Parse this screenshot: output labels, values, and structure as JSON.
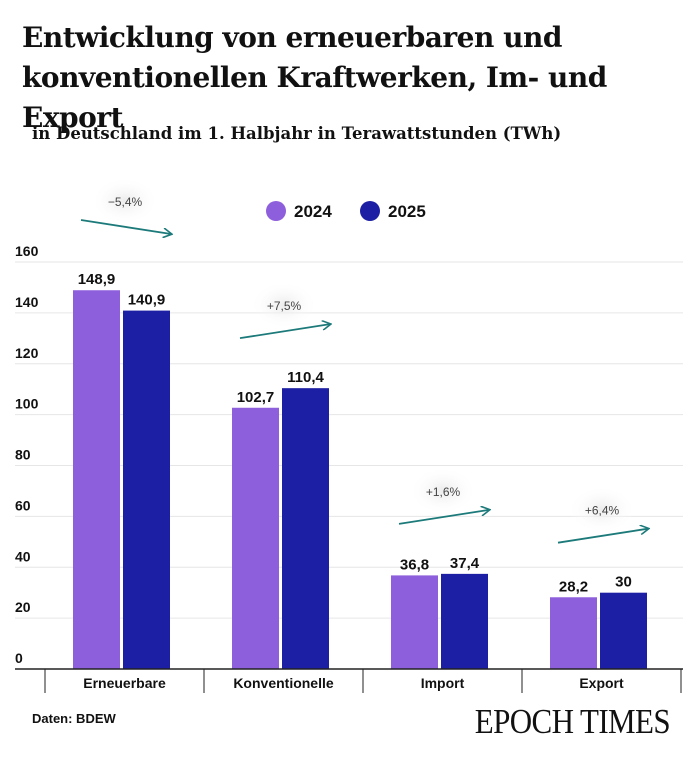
{
  "header": {
    "title": "Entwicklung von erneuerbaren und konventionellen Kraftwerken, Im- und Export",
    "subtitle": "in Deutschland im 1. Halbjahr in Terawattstunden (TWh)"
  },
  "footer": {
    "source": "Daten: BDEW",
    "brand": "EPOCH TIMES"
  },
  "colors": {
    "series_2024": "#8e5fdc",
    "series_2025": "#1c1fa3",
    "trend_arrow": "#1d7a7a",
    "grid": "#e6e6e6"
  },
  "chart_data": {
    "type": "bar",
    "title": "Entwicklung von erneuerbaren und konventionellen Kraftwerken, Im- und Export",
    "subtitle": "in Deutschland im 1. Halbjahr in Terawattstunden (TWh)",
    "xlabel": "",
    "ylabel": "",
    "ylim": [
      0,
      160
    ],
    "yticks": [
      0,
      20,
      40,
      60,
      80,
      100,
      120,
      140,
      160
    ],
    "grid": true,
    "legend_position": "top-center",
    "categories": [
      "Erneuerbare",
      "Konventionelle",
      "Import",
      "Export"
    ],
    "series": [
      {
        "name": "2024",
        "values": [
          148.9,
          102.7,
          36.8,
          28.2
        ],
        "labels": [
          "148,9",
          "102,7",
          "36,8",
          "28,2"
        ]
      },
      {
        "name": "2025",
        "values": [
          140.9,
          110.4,
          37.4,
          30
        ],
        "labels": [
          "140,9",
          "110,4",
          "37,4",
          "30"
        ]
      }
    ],
    "annotations": [
      {
        "category": "Erneuerbare",
        "text": "−5,4%",
        "direction": "down"
      },
      {
        "category": "Konventionelle",
        "text": "+7,5%",
        "direction": "up"
      },
      {
        "category": "Import",
        "text": "+1,6%",
        "direction": "up"
      },
      {
        "category": "Export",
        "text": "+6,4%",
        "direction": "up"
      }
    ]
  }
}
